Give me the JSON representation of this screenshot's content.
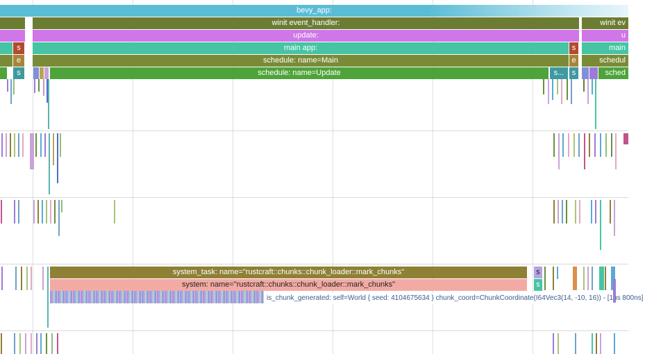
{
  "colors": {
    "bevy_app": "#5bbcd6",
    "winit": "#6c7d33",
    "update": "#cf76e8",
    "main_app": "#46c4a4",
    "schedule_main": "#7a8b38",
    "schedule_update": "#4ea43a",
    "system_task": "#8e8035",
    "system": "#f3aaa4",
    "tooltip_text": "#3c5a8c"
  },
  "timeline": {
    "bevy_app_label": "bevy_app:",
    "winit_label": "winit event_handler:",
    "update_label": "update:",
    "main_app_label": "main app:",
    "schedule_main_label": "schedule: name=Main",
    "schedule_update_label": "schedule: name=Update",
    "right_winit_label": "winit ev",
    "right_update_label": "u",
    "right_main_app_label": "main",
    "right_schedule_main_label": "schedul",
    "right_schedule_update_label": "sched",
    "small_s": "s",
    "small_e": "e",
    "right_s_dots": "s...",
    "system_task_label": "system_task: name=\"rustcraft::chunks::chunk_loader::mark_chunks\"",
    "system_label": "system: name=\"rustcraft::chunks::chunk_loader::mark_chunks\"",
    "hover_info": "is_chunk_generated: self=World { seed: 4104675634 } chunk_coord=ChunkCoordinate(I64Vec3(14, -10, 16)) - [1us 800ns]"
  }
}
